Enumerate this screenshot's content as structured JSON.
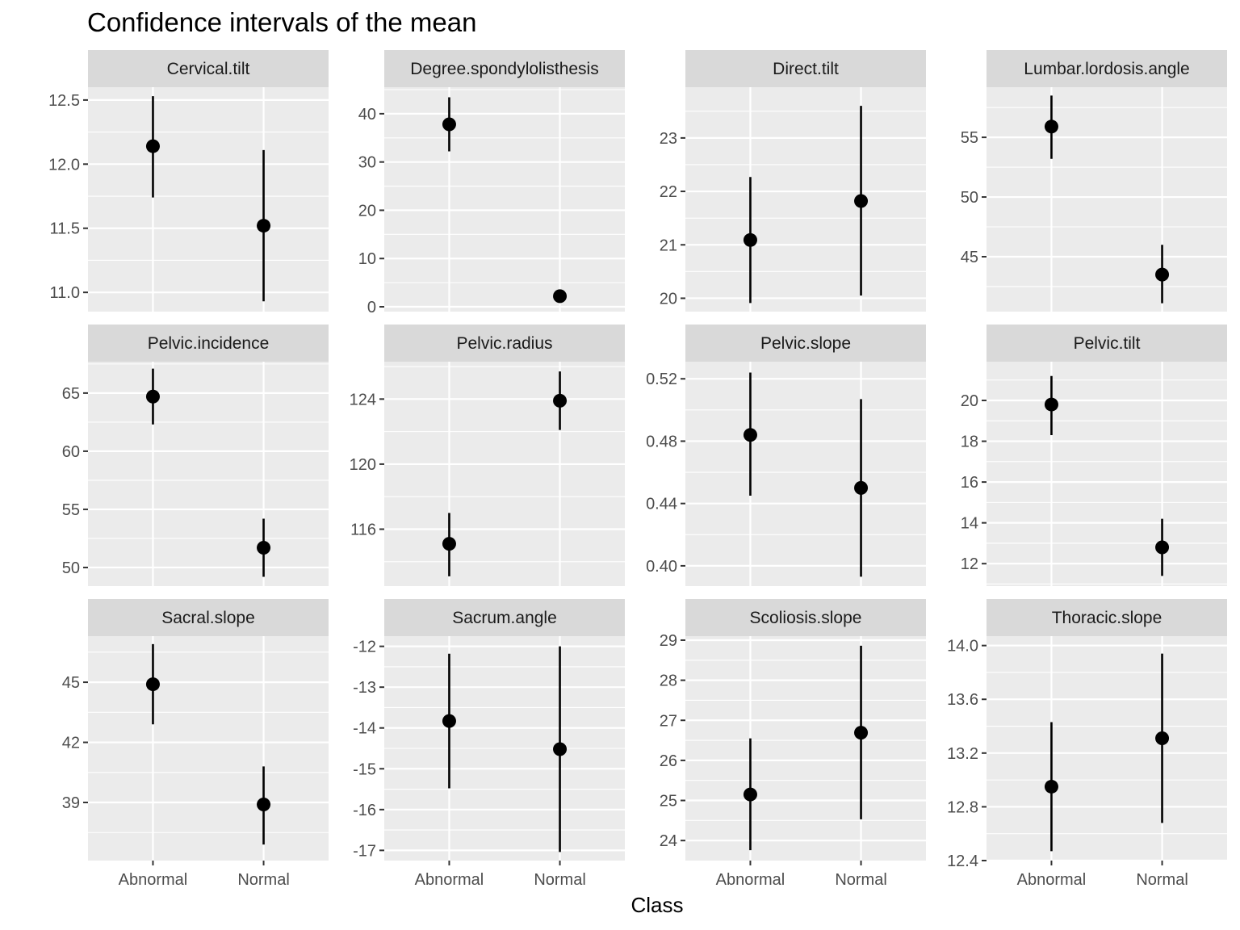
{
  "chart_data": {
    "type": "errorbar-facets",
    "title": "Confidence intervals of the mean",
    "xlabel": "Class",
    "ylabel": "",
    "categories": [
      "Abnormal",
      "Normal"
    ],
    "grid": true,
    "panels": [
      {
        "name": "Cervical.tilt",
        "ylim": [
          10.85,
          12.6
        ],
        "major_ticks": [
          11.0,
          11.5,
          12.0,
          12.5
        ],
        "tick_labels": [
          "11.0",
          "11.5",
          "12.0",
          "12.5"
        ],
        "points": [
          {
            "category": "Abnormal",
            "mean": 12.14,
            "lower": 11.74,
            "upper": 12.53
          },
          {
            "category": "Normal",
            "mean": 11.52,
            "lower": 10.93,
            "upper": 12.11
          }
        ]
      },
      {
        "name": "Degree.spondylolisthesis",
        "ylim": [
          -1,
          45.5
        ],
        "major_ticks": [
          0,
          10,
          20,
          30,
          40
        ],
        "tick_labels": [
          "0",
          "10",
          "20",
          "30",
          "40"
        ],
        "points": [
          {
            "category": "Abnormal",
            "mean": 37.8,
            "lower": 32.2,
            "upper": 43.4
          },
          {
            "category": "Normal",
            "mean": 2.2,
            "lower": 1.9,
            "upper": 2.5
          }
        ]
      },
      {
        "name": "Direct.tilt",
        "ylim": [
          19.75,
          23.95
        ],
        "major_ticks": [
          20,
          21,
          22,
          23
        ],
        "tick_labels": [
          "20",
          "21",
          "22",
          "23"
        ],
        "points": [
          {
            "category": "Abnormal",
            "mean": 21.09,
            "lower": 19.91,
            "upper": 22.27
          },
          {
            "category": "Normal",
            "mean": 21.82,
            "lower": 20.05,
            "upper": 23.6
          }
        ]
      },
      {
        "name": "Lumbar.lordosis.angle",
        "ylim": [
          40.4,
          59.2
        ],
        "major_ticks": [
          45,
          50,
          55
        ],
        "tick_labels": [
          "45",
          "50",
          "55"
        ],
        "points": [
          {
            "category": "Abnormal",
            "mean": 55.9,
            "lower": 53.2,
            "upper": 58.5
          },
          {
            "category": "Normal",
            "mean": 43.5,
            "lower": 41.1,
            "upper": 46.0
          }
        ]
      },
      {
        "name": "Pelvic.incidence",
        "ylim": [
          48.4,
          67.7
        ],
        "major_ticks": [
          50,
          55,
          60,
          65
        ],
        "tick_labels": [
          "50",
          "55",
          "60",
          "65"
        ],
        "points": [
          {
            "category": "Abnormal",
            "mean": 64.7,
            "lower": 62.3,
            "upper": 67.1
          },
          {
            "category": "Normal",
            "mean": 51.7,
            "lower": 49.2,
            "upper": 54.2
          }
        ]
      },
      {
        "name": "Pelvic.radius",
        "ylim": [
          112.5,
          126.3
        ],
        "major_ticks": [
          116,
          120,
          124
        ],
        "tick_labels": [
          "116",
          "120",
          "124"
        ],
        "points": [
          {
            "category": "Abnormal",
            "mean": 115.1,
            "lower": 113.1,
            "upper": 117.0
          },
          {
            "category": "Normal",
            "mean": 123.9,
            "lower": 122.1,
            "upper": 125.7
          }
        ]
      },
      {
        "name": "Pelvic.slope",
        "ylim": [
          0.387,
          0.531
        ],
        "major_ticks": [
          0.4,
          0.44,
          0.48,
          0.52
        ],
        "tick_labels": [
          "0.40",
          "0.44",
          "0.48",
          "0.52"
        ],
        "points": [
          {
            "category": "Abnormal",
            "mean": 0.484,
            "lower": 0.445,
            "upper": 0.524
          },
          {
            "category": "Normal",
            "mean": 0.45,
            "lower": 0.393,
            "upper": 0.507
          }
        ]
      },
      {
        "name": "Pelvic.tilt",
        "ylim": [
          10.9,
          21.9
        ],
        "major_ticks": [
          12,
          14,
          16,
          18,
          20
        ],
        "tick_labels": [
          "12",
          "14",
          "16",
          "18",
          "20"
        ],
        "points": [
          {
            "category": "Abnormal",
            "mean": 19.8,
            "lower": 18.3,
            "upper": 21.2
          },
          {
            "category": "Normal",
            "mean": 12.8,
            "lower": 11.4,
            "upper": 14.2
          }
        ]
      },
      {
        "name": "Sacral.slope",
        "ylim": [
          36.1,
          47.3
        ],
        "major_ticks": [
          39,
          42,
          45
        ],
        "tick_labels": [
          "39",
          "42",
          "45"
        ],
        "points": [
          {
            "category": "Abnormal",
            "mean": 44.9,
            "lower": 42.9,
            "upper": 46.9
          },
          {
            "category": "Normal",
            "mean": 38.9,
            "lower": 36.9,
            "upper": 40.8
          }
        ]
      },
      {
        "name": "Sacrum.angle",
        "ylim": [
          -17.25,
          -11.75
        ],
        "major_ticks": [
          -17,
          -16,
          -15,
          -14,
          -13,
          -12
        ],
        "tick_labels": [
          "-17",
          "-16",
          "-15",
          "-14",
          "-13",
          "-12"
        ],
        "points": [
          {
            "category": "Abnormal",
            "mean": -13.83,
            "lower": -15.48,
            "upper": -12.18
          },
          {
            "category": "Normal",
            "mean": -14.52,
            "lower": -17.04,
            "upper": -12.0
          }
        ]
      },
      {
        "name": "Scoliosis.slope",
        "ylim": [
          23.5,
          29.1
        ],
        "major_ticks": [
          24,
          25,
          26,
          27,
          28,
          29
        ],
        "tick_labels": [
          "24",
          "25",
          "26",
          "27",
          "28",
          "29"
        ],
        "points": [
          {
            "category": "Abnormal",
            "mean": 25.15,
            "lower": 23.76,
            "upper": 26.55
          },
          {
            "category": "Normal",
            "mean": 26.69,
            "lower": 24.53,
            "upper": 28.86
          }
        ]
      },
      {
        "name": "Thoracic.slope",
        "ylim": [
          12.4,
          14.07
        ],
        "major_ticks": [
          12.4,
          12.8,
          13.2,
          13.6,
          14.0
        ],
        "tick_labels": [
          "12.4",
          "12.8",
          "13.2",
          "13.6",
          "14.0"
        ],
        "points": [
          {
            "category": "Abnormal",
            "mean": 12.95,
            "lower": 12.47,
            "upper": 13.43
          },
          {
            "category": "Normal",
            "mean": 13.31,
            "lower": 12.68,
            "upper": 13.94
          }
        ]
      }
    ]
  }
}
